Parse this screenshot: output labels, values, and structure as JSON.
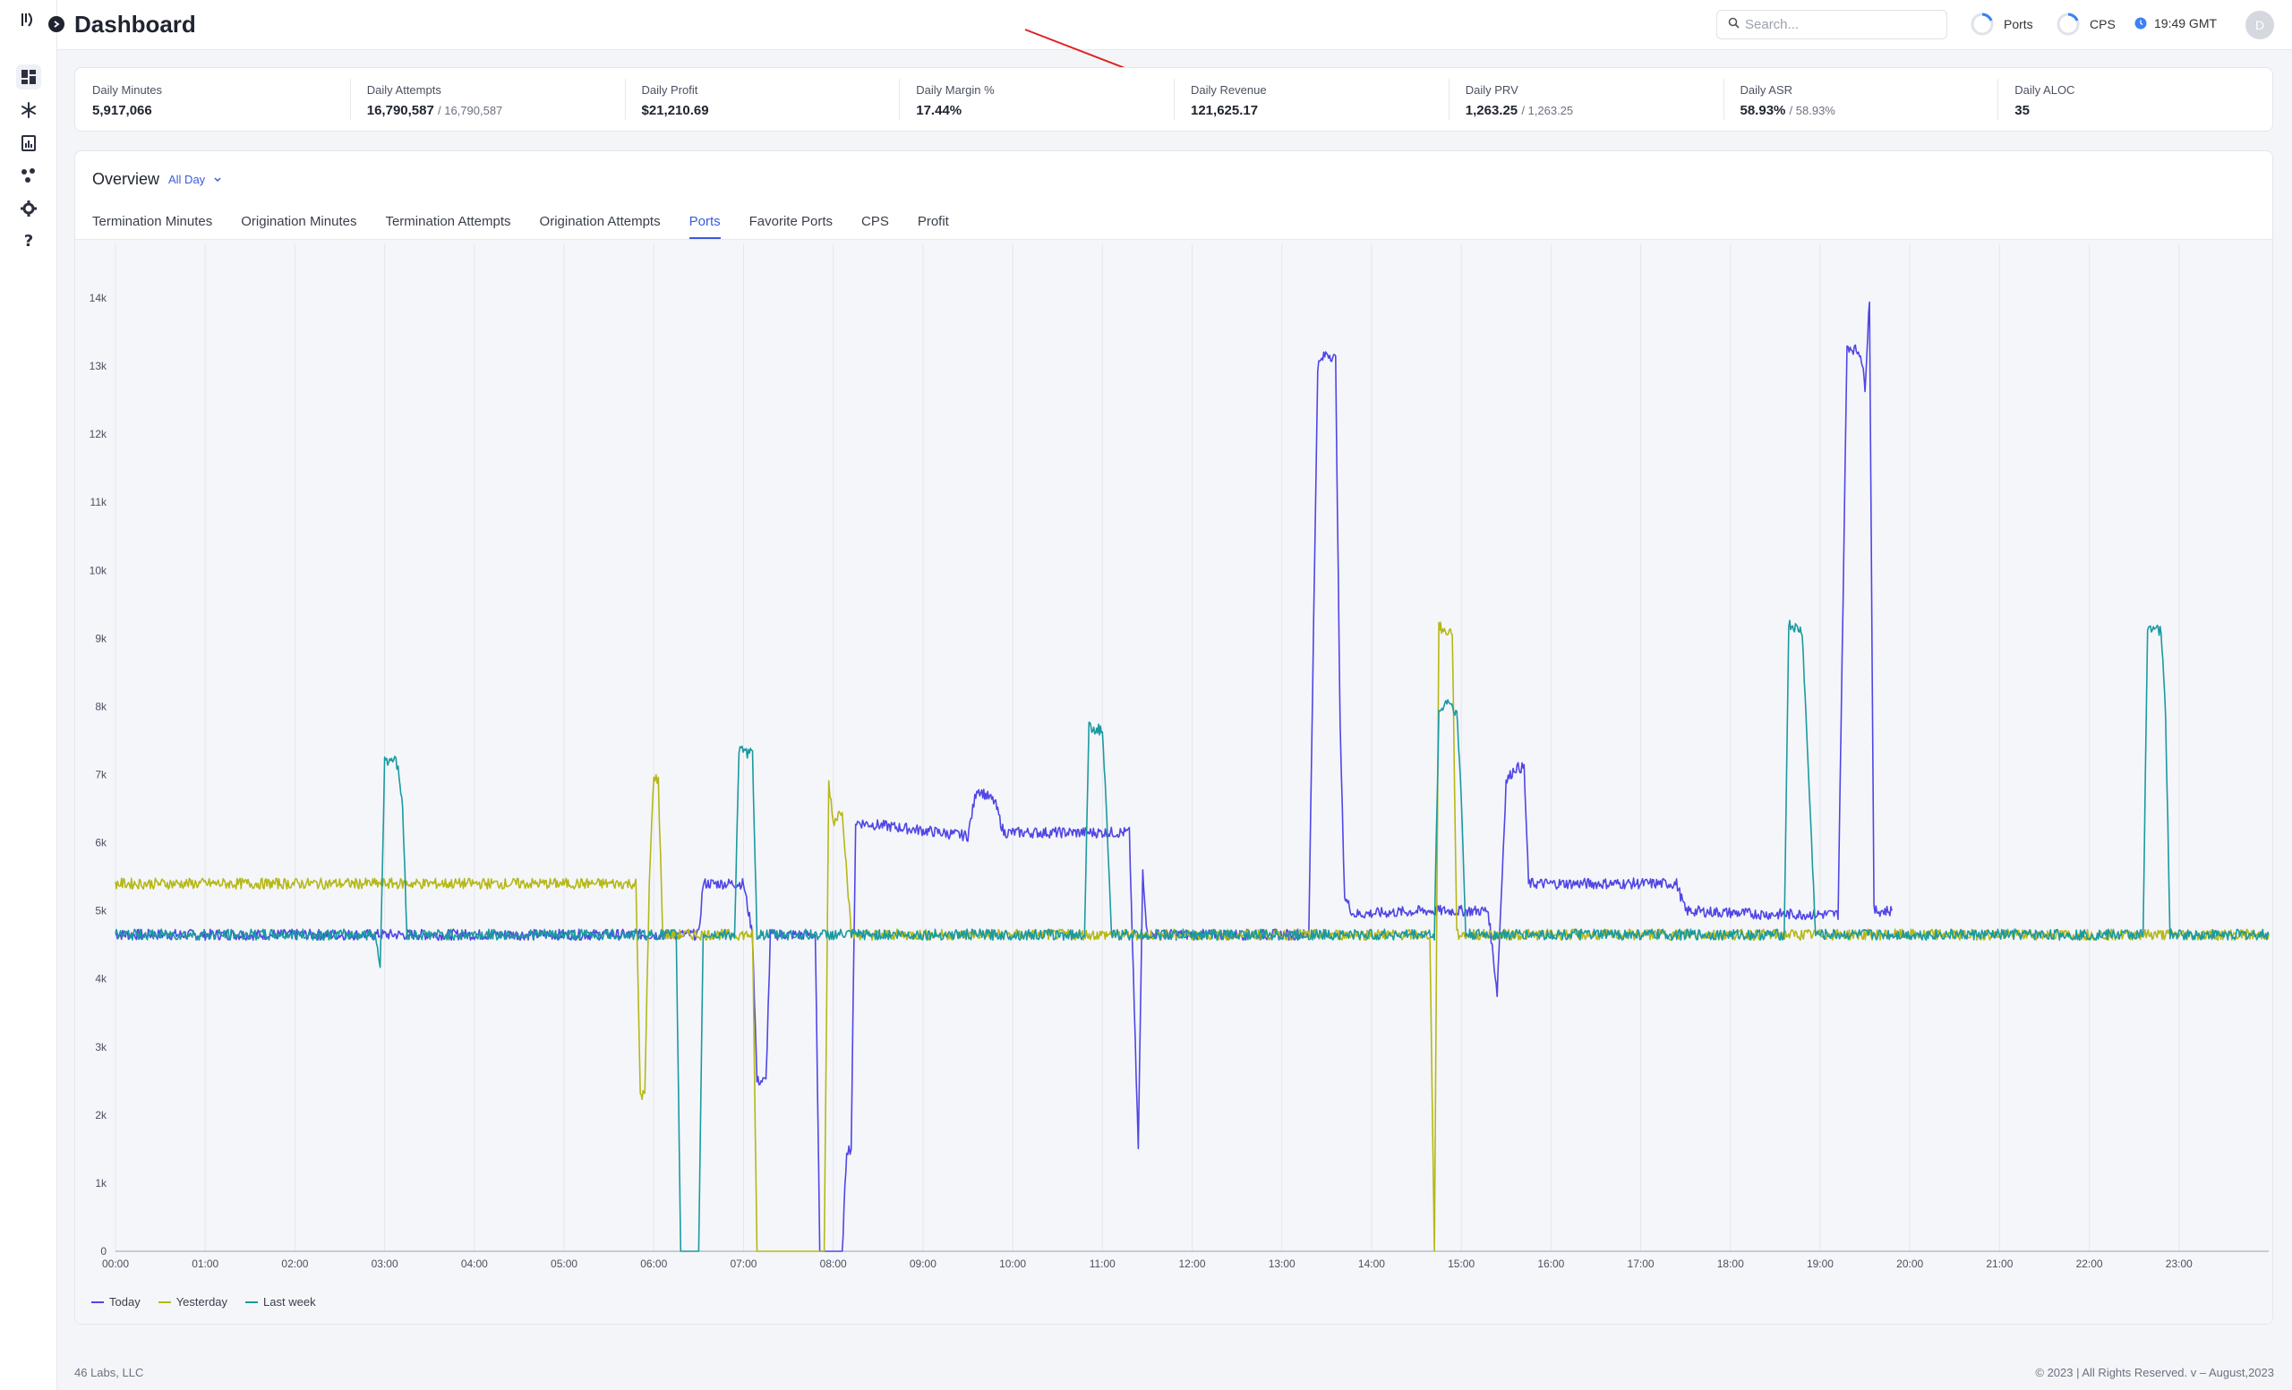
{
  "header": {
    "title": "Dashboard",
    "search_placeholder": "Search...",
    "ports_label": "Ports",
    "cps_label": "CPS",
    "time": "19:49 GMT",
    "avatar_initial": "D"
  },
  "sidebar": {
    "items": [
      {
        "icon": "dashboard-icon"
      },
      {
        "icon": "asterisk-icon"
      },
      {
        "icon": "report-icon"
      },
      {
        "icon": "network-icon"
      },
      {
        "icon": "gear-icon"
      },
      {
        "icon": "help-icon"
      }
    ]
  },
  "stats": [
    {
      "label": "Daily Minutes",
      "value": "5,917,066",
      "sub": ""
    },
    {
      "label": "Daily Attempts",
      "value": "16,790,587",
      "sub": "/ 16,790,587"
    },
    {
      "label": "Daily Profit",
      "value": "$21,210.69",
      "sub": ""
    },
    {
      "label": "Daily Margin %",
      "value": "17.44%",
      "sub": ""
    },
    {
      "label": "Daily Revenue",
      "value": "121,625.17",
      "sub": ""
    },
    {
      "label": "Daily PRV",
      "value": "1,263.25",
      "sub": "/ 1,263.25"
    },
    {
      "label": "Daily ASR",
      "value": "58.93%",
      "sub": "/ 58.93%"
    },
    {
      "label": "Daily ALOC",
      "value": "35",
      "sub": ""
    }
  ],
  "overview": {
    "title": "Overview",
    "range": "All Day",
    "tabs": [
      "Termination Minutes",
      "Origination Minutes",
      "Termination Attempts",
      "Origination Attempts",
      "Ports",
      "Favorite Ports",
      "CPS",
      "Profit"
    ],
    "active_tab": "Ports"
  },
  "colors": {
    "accent": "#3b5bdb",
    "today": "#5046e5",
    "yesterday": "#b5b817",
    "last_week": "#1a9aa0"
  },
  "chart_data": {
    "type": "line",
    "x_ticks": [
      "00:00",
      "01:00",
      "02:00",
      "03:00",
      "04:00",
      "05:00",
      "06:00",
      "07:00",
      "08:00",
      "09:00",
      "10:00",
      "11:00",
      "12:00",
      "13:00",
      "14:00",
      "15:00",
      "16:00",
      "17:00",
      "18:00",
      "19:00",
      "20:00",
      "21:00",
      "22:00",
      "23:00"
    ],
    "y_ticks": [
      "0",
      "1k",
      "2k",
      "3k",
      "4k",
      "5k",
      "6k",
      "7k",
      "8k",
      "9k",
      "10k",
      "11k",
      "12k",
      "13k",
      "14k"
    ],
    "ylim": [
      0,
      14000
    ],
    "xlim_hours": [
      0,
      24
    ],
    "grid": true,
    "legend_position": "bottom-left",
    "series": [
      {
        "name": "Today",
        "color": "#5046e5",
        "points": [
          [
            0,
            4650
          ],
          [
            3,
            4650
          ],
          [
            6.5,
            4650
          ],
          [
            6.55,
            5400
          ],
          [
            7.0,
            5400
          ],
          [
            7.1,
            4650
          ],
          [
            7.15,
            2500
          ],
          [
            7.25,
            2500
          ],
          [
            7.3,
            4650
          ],
          [
            7.8,
            4650
          ],
          [
            7.85,
            0
          ],
          [
            8.1,
            0
          ],
          [
            8.15,
            1500
          ],
          [
            8.2,
            1500
          ],
          [
            8.25,
            6300
          ],
          [
            9.5,
            6100
          ],
          [
            9.6,
            6800
          ],
          [
            9.8,
            6600
          ],
          [
            9.9,
            6150
          ],
          [
            11.3,
            6150
          ],
          [
            11.4,
            1500
          ],
          [
            11.45,
            5600
          ],
          [
            11.5,
            4650
          ],
          [
            13.3,
            4650
          ],
          [
            13.4,
            13000
          ],
          [
            13.5,
            13200
          ],
          [
            13.6,
            13100
          ],
          [
            13.65,
            7700
          ],
          [
            13.7,
            5200
          ],
          [
            13.8,
            4950
          ],
          [
            14.6,
            5000
          ],
          [
            15.3,
            5000
          ],
          [
            15.4,
            3800
          ],
          [
            15.5,
            6900
          ],
          [
            15.6,
            7100
          ],
          [
            15.7,
            7100
          ],
          [
            15.75,
            5400
          ],
          [
            17.4,
            5400
          ],
          [
            17.5,
            5000
          ],
          [
            18.4,
            4950
          ],
          [
            19.2,
            4950
          ],
          [
            19.3,
            13300
          ],
          [
            19.45,
            13200
          ],
          [
            19.5,
            12700
          ],
          [
            19.55,
            14000
          ],
          [
            19.6,
            5000
          ],
          [
            19.8,
            5000
          ]
        ]
      },
      {
        "name": "Yesterday",
        "color": "#b5b817",
        "points": [
          [
            0,
            5400
          ],
          [
            5.8,
            5400
          ],
          [
            5.85,
            2300
          ],
          [
            5.9,
            2300
          ],
          [
            5.95,
            5400
          ],
          [
            6.0,
            7000
          ],
          [
            6.05,
            6900
          ],
          [
            6.1,
            4650
          ],
          [
            7.1,
            4650
          ],
          [
            7.15,
            0
          ],
          [
            7.9,
            0
          ],
          [
            7.95,
            6900
          ],
          [
            8.0,
            6300
          ],
          [
            8.1,
            6500
          ],
          [
            8.2,
            4650
          ],
          [
            14.65,
            4650
          ],
          [
            14.7,
            0
          ],
          [
            14.75,
            9200
          ],
          [
            14.8,
            9100
          ],
          [
            14.9,
            9100
          ],
          [
            14.95,
            4650
          ],
          [
            24,
            4650
          ]
        ]
      },
      {
        "name": "Last week",
        "color": "#1a9aa0",
        "points": [
          [
            0,
            4650
          ],
          [
            2.9,
            4650
          ],
          [
            2.95,
            4150
          ],
          [
            3.0,
            7200
          ],
          [
            3.1,
            7250
          ],
          [
            3.15,
            7100
          ],
          [
            3.2,
            6500
          ],
          [
            3.25,
            4650
          ],
          [
            6.25,
            4650
          ],
          [
            6.3,
            0
          ],
          [
            6.5,
            0
          ],
          [
            6.55,
            4650
          ],
          [
            6.9,
            4650
          ],
          [
            6.95,
            7350
          ],
          [
            7.1,
            7300
          ],
          [
            7.15,
            4650
          ],
          [
            10.8,
            4650
          ],
          [
            10.85,
            7700
          ],
          [
            11.0,
            7650
          ],
          [
            11.05,
            6300
          ],
          [
            11.1,
            4650
          ],
          [
            14.7,
            4650
          ],
          [
            14.75,
            7900
          ],
          [
            14.85,
            8100
          ],
          [
            14.95,
            7900
          ],
          [
            15.0,
            6700
          ],
          [
            15.05,
            4650
          ],
          [
            18.6,
            4650
          ],
          [
            18.65,
            9200
          ],
          [
            18.8,
            9100
          ],
          [
            18.95,
            4650
          ],
          [
            22.6,
            4650
          ],
          [
            22.65,
            9200
          ],
          [
            22.8,
            9100
          ],
          [
            22.85,
            7900
          ],
          [
            22.9,
            4650
          ],
          [
            24,
            4650
          ]
        ]
      }
    ]
  },
  "footer": {
    "company": "46 Labs, LLC",
    "copyright": "© 2023 | All Rights Reserved. v – August,2023"
  }
}
